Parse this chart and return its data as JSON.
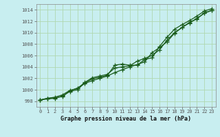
{
  "title": "Graphe pression niveau de la mer (hPa)",
  "bg_color": "#c8eef0",
  "grid_color": "#b0d8b0",
  "line_color": "#1a5c1a",
  "x_ticks": [
    0,
    1,
    2,
    3,
    4,
    5,
    6,
    7,
    8,
    9,
    10,
    11,
    12,
    13,
    14,
    15,
    16,
    17,
    18,
    19,
    20,
    21,
    22,
    23
  ],
  "y_ticks": [
    998,
    1000,
    1002,
    1004,
    1006,
    1008,
    1010,
    1012,
    1014
  ],
  "xlim": [
    -0.5,
    23.5
  ],
  "ylim": [
    997.0,
    1015.0
  ],
  "series1": [
    998.2,
    998.5,
    998.6,
    998.8,
    999.8,
    1000.3,
    1001.1,
    1001.6,
    1002.0,
    1002.4,
    1003.0,
    1003.5,
    1004.0,
    1004.4,
    1004.9,
    1006.5,
    1007.4,
    1008.4,
    1009.9,
    1010.9,
    1011.8,
    1012.4,
    1013.5,
    1013.9
  ],
  "series2": [
    998.2,
    998.4,
    998.5,
    998.9,
    999.7,
    1000.0,
    1001.2,
    1001.9,
    1002.2,
    1002.5,
    1004.3,
    1004.5,
    1004.3,
    1004.3,
    1005.3,
    1005.6,
    1007.6,
    1009.2,
    1010.6,
    1011.4,
    1012.1,
    1012.9,
    1013.8,
    1014.2
  ],
  "series3": [
    998.2,
    998.5,
    998.7,
    999.1,
    999.9,
    1000.2,
    1001.3,
    1002.1,
    1002.4,
    1002.7,
    1003.8,
    1004.0,
    1004.2,
    1005.0,
    1005.5,
    1006.0,
    1007.0,
    1008.7,
    1010.0,
    1010.9,
    1011.7,
    1012.5,
    1013.4,
    1013.9
  ]
}
